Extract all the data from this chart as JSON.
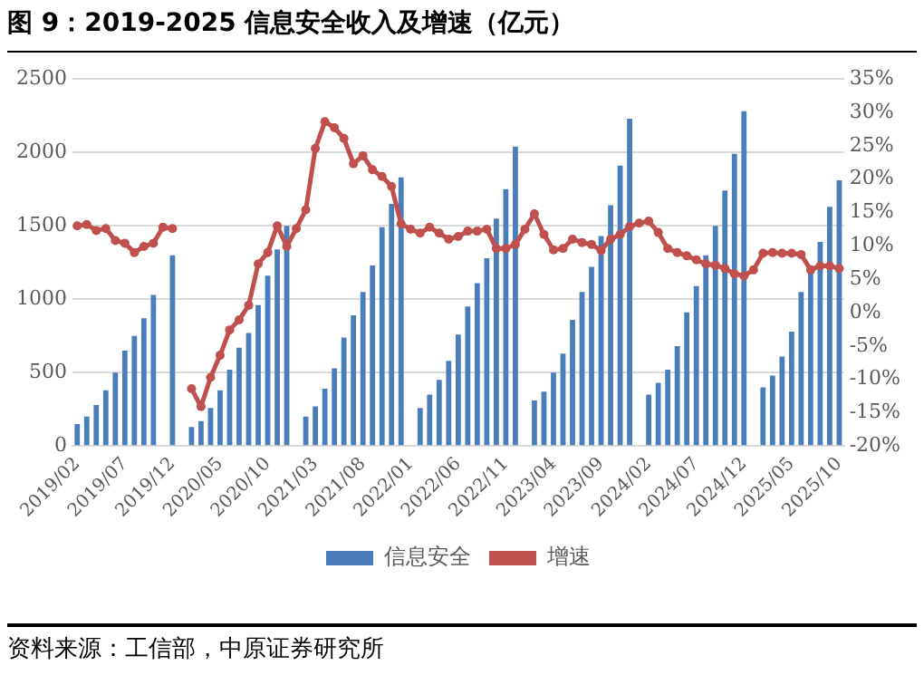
{
  "chart_data": {
    "type": "bar",
    "title": "图 9：2019-2025 信息安全收入及增速（亿元）",
    "categories": [
      "2019/02",
      null,
      null,
      null,
      null,
      "2019/07",
      null,
      null,
      null,
      null,
      "2019/12",
      null,
      null,
      null,
      null,
      "2020/05",
      null,
      null,
      null,
      null,
      "2020/10",
      null,
      null,
      null,
      null,
      "2021/03",
      null,
      null,
      null,
      null,
      "2021/08",
      null,
      null,
      null,
      null,
      "2022/01",
      null,
      null,
      null,
      null,
      "2022/06",
      null,
      null,
      null,
      null,
      "2022/11",
      null,
      null,
      null,
      null,
      "2023/04",
      null,
      null,
      null,
      null,
      "2023/09",
      null,
      null,
      null,
      null,
      "2024/02",
      null,
      null,
      null,
      null,
      "2024/07",
      null,
      null,
      null,
      null,
      "2024/12",
      null,
      null,
      null,
      null,
      "2025/05",
      null,
      null,
      null,
      null,
      "2025/10"
    ],
    "series": [
      {
        "name": "信息安全",
        "color": "#4a7ebb",
        "values": [
          150,
          200,
          280,
          380,
          500,
          650,
          750,
          870,
          1030,
          null,
          1300,
          null,
          130,
          170,
          260,
          380,
          520,
          670,
          770,
          960,
          1160,
          1340,
          1500,
          null,
          200,
          270,
          390,
          530,
          740,
          890,
          1050,
          1230,
          1490,
          1650,
          1830,
          null,
          260,
          350,
          450,
          580,
          760,
          950,
          1110,
          1280,
          1550,
          1750,
          2040,
          null,
          310,
          370,
          500,
          630,
          860,
          1050,
          1220,
          1430,
          1640,
          1910,
          2230,
          null,
          350,
          430,
          520,
          680,
          910,
          1090,
          1300,
          1500,
          1740,
          1990,
          2280,
          null,
          400,
          480,
          610,
          780,
          1050,
          1230,
          1390,
          1630,
          1810
        ]
      },
      {
        "name": "增速",
        "type": "line",
        "axis": "y2",
        "color": "#c0504d",
        "values": [
          13.0,
          13.2,
          12.3,
          12.6,
          10.8,
          10.4,
          9.0,
          9.9,
          10.4,
          12.8,
          12.6,
          null,
          -11.4,
          -14.1,
          -9.7,
          -6.4,
          -2.6,
          -1.1,
          1.1,
          7.3,
          9.0,
          13.0,
          9.9,
          12.6,
          15.4,
          24.6,
          28.6,
          27.7,
          26.1,
          22.3,
          23.5,
          21.4,
          20.4,
          18.9,
          13.3,
          12.5,
          11.9,
          12.8,
          11.9,
          11.0,
          11.4,
          12.2,
          12.2,
          12.5,
          9.6,
          9.6,
          10.2,
          12.5,
          14.8,
          11.7,
          9.4,
          9.6,
          11.0,
          10.5,
          10.2,
          9.3,
          11.0,
          11.7,
          12.9,
          13.4,
          13.7,
          12.0,
          9.6,
          9.0,
          8.5,
          7.9,
          7.3,
          7.1,
          6.6,
          5.8,
          5.5,
          6.4,
          8.9,
          9.0,
          8.9,
          8.9,
          8.7,
          6.4,
          7.0,
          7.0,
          6.6
        ]
      }
    ],
    "ylim": [
      0,
      2500
    ],
    "yticks": [
      0,
      500,
      1000,
      1500,
      2000,
      2500
    ],
    "y2lim": [
      -20,
      35
    ],
    "y2ticks": [
      {
        "value": -20,
        "label": "-20%"
      },
      {
        "value": -15,
        "label": "-15%"
      },
      {
        "value": -10,
        "label": "-10%"
      },
      {
        "value": -5,
        "label": "-5%"
      },
      {
        "value": 0,
        "label": "0%"
      },
      {
        "value": 5,
        "label": "5%"
      },
      {
        "value": 10,
        "label": "10%"
      },
      {
        "value": 15,
        "label": "15%"
      },
      {
        "value": 20,
        "label": "20%"
      },
      {
        "value": 25,
        "label": "25%"
      },
      {
        "value": 30,
        "label": "30%"
      },
      {
        "value": 35,
        "label": "35%"
      }
    ],
    "grid": "y",
    "legend": "bottom",
    "marker": "circle",
    "annotations": [
      "资料来源：工信部，中原证券研究所"
    ]
  }
}
